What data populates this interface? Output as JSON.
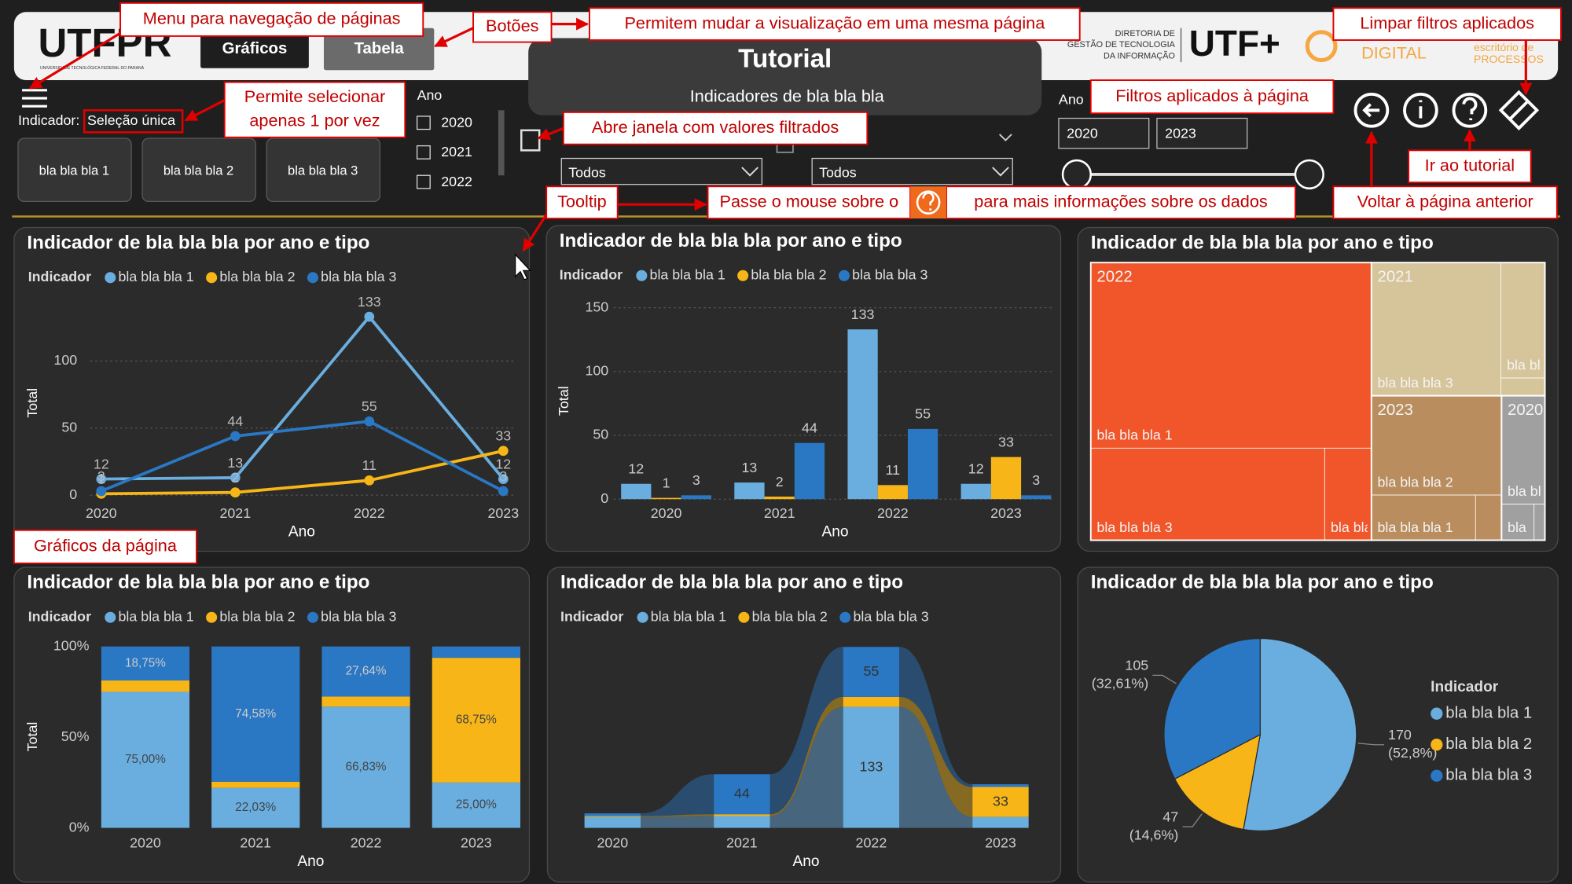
{
  "header": {
    "logo": "UTFPR",
    "logo_caption": "UNIVERSIDADE TECNOLÓGICA FEDERAL DO PARANÁ",
    "dir_lines": [
      "DIRETORIA DE",
      "GESTÃO DE TECNOLOGIA",
      "DA INFORMAÇÃO"
    ],
    "logo_utf": "UTF+",
    "logo_digital": "DIGITAL",
    "logo_processos": [
      "escritório de",
      "PROCESSOS"
    ]
  },
  "nav_buttons": [
    "Gráficos",
    "Tabela"
  ],
  "title": "Tutorial",
  "subtitle": "Indicadores de bla bla bla",
  "indicator_filter": {
    "label": "Indicador:",
    "value": "Seleção única",
    "buttons": [
      "bla bla bla 1",
      "bla bla bla 2",
      "bla bla bla 3"
    ]
  },
  "year_filter": {
    "label": "Ano",
    "items": [
      "2020",
      "2021",
      "2022"
    ]
  },
  "dropdowns": [
    "Todos",
    "Todos"
  ],
  "range_filter": {
    "label": "Ano",
    "from": "2020",
    "to": "2023"
  },
  "annotations": [
    {
      "lines": [
        "Menu para navegação de páginas"
      ]
    },
    {
      "lines": [
        "Botões"
      ]
    },
    {
      "lines": [
        "Permitem mudar a visualização em uma mesma página"
      ]
    },
    {
      "lines": [
        "Limpar filtros aplicados"
      ]
    },
    {
      "lines": [
        "Permite selecionar",
        "apenas 1 por vez"
      ]
    },
    {
      "lines": [
        "Abre janela com valores filtrados"
      ]
    },
    {
      "lines": [
        "Filtros aplicados à página"
      ]
    },
    {
      "lines": [
        "Ir ao tutorial"
      ]
    },
    {
      "lines": [
        "Tooltip"
      ]
    },
    {
      "lines": [
        "Passe o mouse sobre o"
      ]
    },
    {
      "lines": [
        "para mais informações sobre os dados"
      ]
    },
    {
      "lines": [
        "Voltar à página anterior"
      ]
    },
    {
      "lines": [
        "Gráficos da página"
      ]
    }
  ],
  "charts": [
    {
      "type": "line",
      "title": "Indicador de bla bla bla por ano e tipo",
      "legend_title": "Indicador",
      "x_label": "Ano",
      "y_label": "Total",
      "categories": [
        "2020",
        "2021",
        "2022",
        "2023"
      ],
      "series": [
        {
          "name": "bla bla bla 1",
          "color": "#6aaee0",
          "values": [
            12,
            13,
            133,
            12
          ]
        },
        {
          "name": "bla bla bla 2",
          "color": "#f7b518",
          "values": [
            1,
            2,
            11,
            33
          ]
        },
        {
          "name": "bla bla bla 3",
          "color": "#2a77c4",
          "values": [
            3,
            44,
            55,
            3
          ]
        }
      ],
      "ylim": [
        0,
        145
      ],
      "yticks": [
        0,
        50,
        100
      ],
      "grid": true
    },
    {
      "type": "bar",
      "title": "Indicador de bla bla bla por ano e tipo",
      "legend_title": "Indicador",
      "x_label": "Ano",
      "y_label": "Total",
      "categories": [
        "2020",
        "2021",
        "2022",
        "2023"
      ],
      "series": [
        {
          "name": "bla bla bla 1",
          "color": "#6aaee0",
          "values": [
            12,
            13,
            133,
            12
          ]
        },
        {
          "name": "bla bla bla 2",
          "color": "#f7b518",
          "values": [
            1,
            2,
            11,
            33
          ]
        },
        {
          "name": "bla bla bla 3",
          "color": "#2a77c4",
          "values": [
            3,
            44,
            55,
            3
          ]
        }
      ],
      "ylim": [
        0,
        150
      ],
      "yticks": [
        0,
        50,
        100,
        150
      ],
      "grid": true
    },
    {
      "type": "treemap",
      "title": "Indicador de bla bla bla por ano e tipo",
      "groups": [
        {
          "name": "2022",
          "color": "#f0562a",
          "children": [
            {
              "name": "bla bla bla 1",
              "value": 133
            },
            {
              "name": "bla bla bla 3",
              "value": 55
            },
            {
              "name": "bla bla bla 2",
              "value": 11
            }
          ]
        },
        {
          "name": "2021",
          "color": "#d6c49a",
          "children": [
            {
              "name": "bla bla bla 3",
              "value": 44
            },
            {
              "name": "bla bla bla 1",
              "value": 13
            },
            {
              "name": "bla bla bla 2",
              "value": 2
            }
          ]
        },
        {
          "name": "2023",
          "color": "#b98d5e",
          "children": [
            {
              "name": "bla bla bla 2",
              "value": 33
            },
            {
              "name": "bla bla bla 1",
              "value": 12
            },
            {
              "name": "bla bla bla 3",
              "value": 3
            }
          ]
        },
        {
          "name": "2020",
          "color": "#a0a0a0",
          "children": [
            {
              "name": "bla bla bla 1",
              "value": 12
            },
            {
              "name": "bla bla bla 3",
              "value": 3
            },
            {
              "name": "bla bla bla 2",
              "value": 1
            }
          ]
        }
      ]
    },
    {
      "type": "stacked100",
      "title": "Indicador de bla bla bla por ano e tipo",
      "legend_title": "Indicador",
      "x_label": "Ano",
      "y_label": "Total",
      "categories": [
        "2020",
        "2021",
        "2022",
        "2023"
      ],
      "series": [
        {
          "name": "bla bla bla 1",
          "color": "#6aaee0",
          "values": [
            75.0,
            22.03,
            66.83,
            25.0
          ],
          "value_labels": [
            "75,00%",
            "22,03%",
            "66,83%",
            "25,00%"
          ]
        },
        {
          "name": "bla bla bla 2",
          "color": "#f7b518",
          "values": [
            6.25,
            3.39,
            5.53,
            68.75
          ],
          "value_labels": [
            null,
            null,
            null,
            "68,75%"
          ]
        },
        {
          "name": "bla bla bla 3",
          "color": "#2a77c4",
          "values": [
            18.75,
            74.58,
            27.64,
            6.25
          ],
          "value_labels": [
            "18,75%",
            "74,58%",
            "27,64%",
            null
          ]
        }
      ],
      "ylim": [
        0,
        100
      ],
      "yticks": [
        {
          "value": 0,
          "label": "0%"
        },
        {
          "value": 50,
          "label": "50%"
        },
        {
          "value": 100,
          "label": "100%"
        }
      ],
      "grid": false
    },
    {
      "type": "ribbon",
      "title": "Indicador de bla bla bla por ano e tipo",
      "legend_title": "Indicador",
      "x_label": "Ano",
      "categories": [
        "2020",
        "2021",
        "2022",
        "2023"
      ],
      "series": [
        {
          "name": "bla bla bla 1",
          "color": "#6aaee0",
          "values": [
            12,
            13,
            133,
            12
          ]
        },
        {
          "name": "bla bla bla 2",
          "color": "#f7b518",
          "values": [
            1,
            2,
            11,
            33
          ]
        },
        {
          "name": "bla bla bla 3",
          "color": "#2a77c4",
          "values": [
            3,
            44,
            55,
            3
          ]
        }
      ],
      "ylim": [
        0,
        205
      ]
    },
    {
      "type": "pie",
      "title": "Indicador de bla bla bla por ano e tipo",
      "legend_title": "Indicador",
      "categories": [
        "bla bla bla 1",
        "bla bla bla 2",
        "bla bla bla 3"
      ],
      "colors": [
        "#6aaee0",
        "#f7b518",
        "#2a77c4"
      ],
      "values": [
        170,
        47,
        105
      ],
      "percent_labels": [
        "(52,8%)",
        "(14,6%)",
        "(32,61%)"
      ]
    }
  ]
}
